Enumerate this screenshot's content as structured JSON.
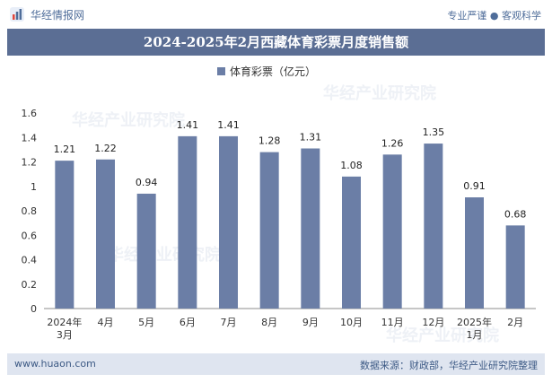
{
  "header": {
    "brand": "华经情报网",
    "tagline": "专业严谨 ● 客观科学"
  },
  "chart_data": {
    "type": "bar",
    "title": "2024-2025年2月西藏体育彩票月度销售额",
    "categories": [
      "2024年\n3月",
      "4月",
      "5月",
      "6月",
      "7月",
      "8月",
      "9月",
      "10月",
      "11月",
      "12月",
      "2025年\n1月",
      "2月"
    ],
    "series": [
      {
        "name": "体育彩票（亿元）",
        "values": [
          1.21,
          1.22,
          0.94,
          1.41,
          1.41,
          1.28,
          1.31,
          1.08,
          1.26,
          1.35,
          0.91,
          0.68
        ]
      }
    ],
    "ylim": [
      0,
      1.6
    ],
    "yticks": [
      "0",
      "0.2",
      "0.4",
      "0.6",
      "0.8",
      "1",
      "1.2",
      "1.4",
      "1.6"
    ],
    "legend_position": "top-center",
    "grid": false,
    "color": "#6b7ea6"
  },
  "footer": {
    "site": "www.huaon.com",
    "source": "数据来源：财政部，华经产业研究院整理"
  },
  "watermarks": [
    "华经产业研究院",
    "华经产业研究院",
    "华经产业研究院",
    "华经产业研究院"
  ]
}
